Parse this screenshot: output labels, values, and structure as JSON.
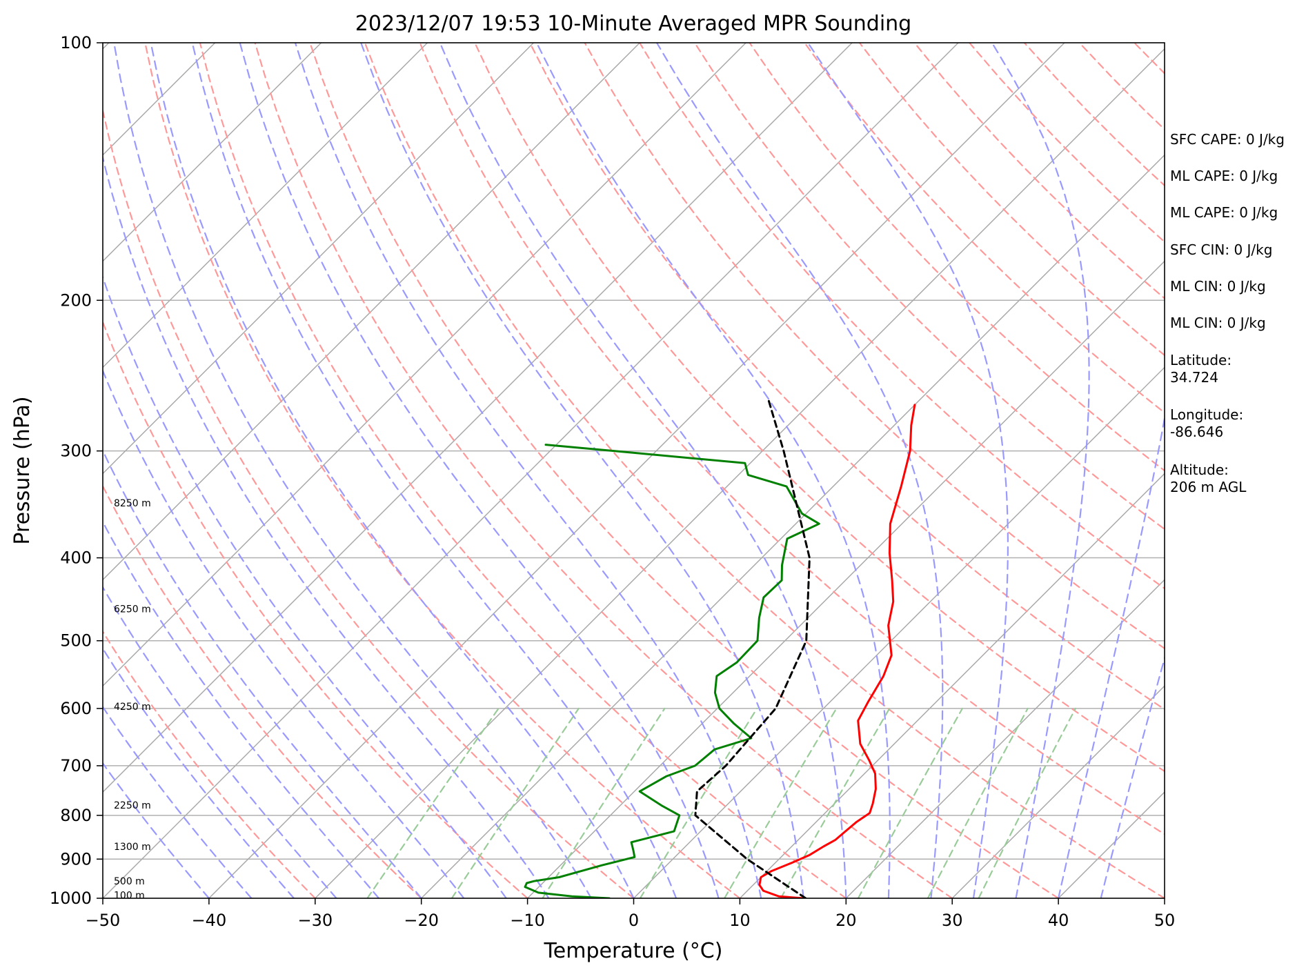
{
  "chart_data": {
    "type": "line",
    "title": "2023/12/07 19:53 10-Minute Averaged MPR Sounding",
    "xlabel": "Temperature (°C)",
    "ylabel": "Pressure (hPa)",
    "xlim": [
      -50,
      50
    ],
    "ylim": [
      1000,
      100
    ],
    "y_scale": "log",
    "grid": true,
    "x_ticks": [
      -50,
      -40,
      -30,
      -20,
      -10,
      0,
      10,
      20,
      30,
      40,
      50
    ],
    "y_ticks": [
      100,
      200,
      300,
      400,
      500,
      600,
      700,
      800,
      900,
      1000
    ],
    "height_labels": [
      {
        "text": "100 m",
        "p": 992
      },
      {
        "text": "500 m",
        "p": 955
      },
      {
        "text": "1300 m",
        "p": 870
      },
      {
        "text": "2250 m",
        "p": 778
      },
      {
        "text": "4250 m",
        "p": 597
      },
      {
        "text": "6250 m",
        "p": 459
      },
      {
        "text": "8250 m",
        "p": 345
      }
    ],
    "series": [
      {
        "kind": "temperature",
        "color": "#ff0000",
        "points": [
          [
            1000,
            16.0
          ],
          [
            995,
            13.5
          ],
          [
            980,
            11.5
          ],
          [
            965,
            10.6
          ],
          [
            945,
            10.0
          ],
          [
            930,
            10.4
          ],
          [
            910,
            11.5
          ],
          [
            890,
            12.5
          ],
          [
            870,
            13.0
          ],
          [
            855,
            13.5
          ],
          [
            840,
            13.6
          ],
          [
            815,
            13.8
          ],
          [
            795,
            14.2
          ],
          [
            775,
            13.6
          ],
          [
            745,
            12.5
          ],
          [
            715,
            11.0
          ],
          [
            690,
            9.2
          ],
          [
            660,
            6.8
          ],
          [
            620,
            4.4
          ],
          [
            590,
            3.6
          ],
          [
            550,
            2.6
          ],
          [
            520,
            1.4
          ],
          [
            480,
            -1.7
          ],
          [
            450,
            -3.5
          ],
          [
            425,
            -5.6
          ],
          [
            395,
            -8.4
          ],
          [
            365,
            -11.1
          ],
          [
            330,
            -13.6
          ],
          [
            300,
            -16.1
          ],
          [
            280,
            -18.4
          ],
          [
            265,
            -20.0
          ]
        ]
      },
      {
        "kind": "dewpoint",
        "color": "#008000",
        "points": [
          [
            1000,
            -2.3
          ],
          [
            995,
            -6.0
          ],
          [
            985,
            -9.5
          ],
          [
            970,
            -11.3
          ],
          [
            960,
            -11.5
          ],
          [
            955,
            -11.0
          ],
          [
            945,
            -9.0
          ],
          [
            915,
            -6.1
          ],
          [
            895,
            -3.8
          ],
          [
            880,
            -4.5
          ],
          [
            860,
            -5.5
          ],
          [
            835,
            -2.5
          ],
          [
            800,
            -3.5
          ],
          [
            780,
            -6.0
          ],
          [
            750,
            -9.5
          ],
          [
            720,
            -8.4
          ],
          [
            700,
            -6.7
          ],
          [
            670,
            -6.4
          ],
          [
            650,
            -4.0
          ],
          [
            625,
            -7.0
          ],
          [
            600,
            -9.8
          ],
          [
            575,
            -11.7
          ],
          [
            550,
            -13.1
          ],
          [
            530,
            -12.5
          ],
          [
            500,
            -12.6
          ],
          [
            470,
            -14.6
          ],
          [
            445,
            -16.1
          ],
          [
            425,
            -16.0
          ],
          [
            408,
            -17.4
          ],
          [
            380,
            -19.4
          ],
          [
            365,
            -17.8
          ],
          [
            355,
            -20.4
          ],
          [
            330,
            -24.4
          ],
          [
            320,
            -29.1
          ],
          [
            310,
            -30.5
          ],
          [
            300,
            -44.0
          ],
          [
            295,
            -51.0
          ]
        ]
      },
      {
        "kind": "parcel",
        "color": "#000000",
        "points": [
          [
            1000,
            16.2
          ],
          [
            900,
            7.0
          ],
          [
            800,
            -2.0
          ],
          [
            750,
            -4.1
          ],
          [
            700,
            -3.8
          ],
          [
            600,
            -4.5
          ],
          [
            500,
            -8.0
          ],
          [
            400,
            -15.5
          ],
          [
            300,
            -28.0
          ],
          [
            260,
            -34.5
          ]
        ]
      }
    ]
  },
  "info_panel": [
    "SFC CAPE: 0 J/kg",
    "ML CAPE: 0 J/kg",
    "ML CAPE: 0 J/kg",
    "SFC CIN: 0 J/kg",
    "ML CIN: 0 J/kg",
    "ML CIN: 0 J/kg",
    "Latitude:\n34.724",
    "Longitude:\n-86.646",
    "Altitude:\n206 m AGL"
  ],
  "colors": {
    "isotherm": "#a9a9a9",
    "dry_adiabat": "#ff9999",
    "moist_adiabat": "#9999ff",
    "mixing_ratio": "#99cc99"
  }
}
